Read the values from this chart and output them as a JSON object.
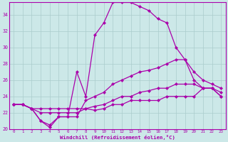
{
  "xlabel": "Windchill (Refroidissement éolien,°C)",
  "ylabel": "",
  "xlim": [
    -0.5,
    23.5
  ],
  "ylim": [
    20,
    35.5
  ],
  "yticks": [
    20,
    22,
    24,
    26,
    28,
    30,
    32,
    34
  ],
  "xticks": [
    0,
    1,
    2,
    3,
    4,
    5,
    6,
    7,
    8,
    9,
    10,
    11,
    12,
    13,
    14,
    15,
    16,
    17,
    18,
    19,
    20,
    21,
    22,
    23
  ],
  "background_color": "#cce8e8",
  "line_color": "#aa00aa",
  "grid_color": "#aacccc",
  "series": [
    [
      23.0,
      23.0,
      22.5,
      21.0,
      20.5,
      21.5,
      21.5,
      27.0,
      24.0,
      31.5,
      33.0,
      35.5,
      35.5,
      35.5,
      35.0,
      34.5,
      33.5,
      33.0,
      30.0,
      28.5,
      26.0,
      25.0,
      25.0,
      24.0
    ],
    [
      23.0,
      23.0,
      22.5,
      21.0,
      20.2,
      21.5,
      21.5,
      21.5,
      23.5,
      24.0,
      24.5,
      25.5,
      26.0,
      26.5,
      27.0,
      27.2,
      27.5,
      28.0,
      28.5,
      28.5,
      27.0,
      26.0,
      25.5,
      25.0
    ],
    [
      23.0,
      23.0,
      22.5,
      22.5,
      22.5,
      22.5,
      22.5,
      22.5,
      22.5,
      22.8,
      23.0,
      23.5,
      24.0,
      24.0,
      24.5,
      24.7,
      25.0,
      25.0,
      25.5,
      25.5,
      25.5,
      25.0,
      25.0,
      24.5
    ],
    [
      23.0,
      23.0,
      22.5,
      22.0,
      22.0,
      22.0,
      22.0,
      22.0,
      22.5,
      22.3,
      22.5,
      23.0,
      23.0,
      23.5,
      23.5,
      23.5,
      23.5,
      24.0,
      24.0,
      24.0,
      24.0,
      25.0,
      25.0,
      24.0
    ]
  ]
}
